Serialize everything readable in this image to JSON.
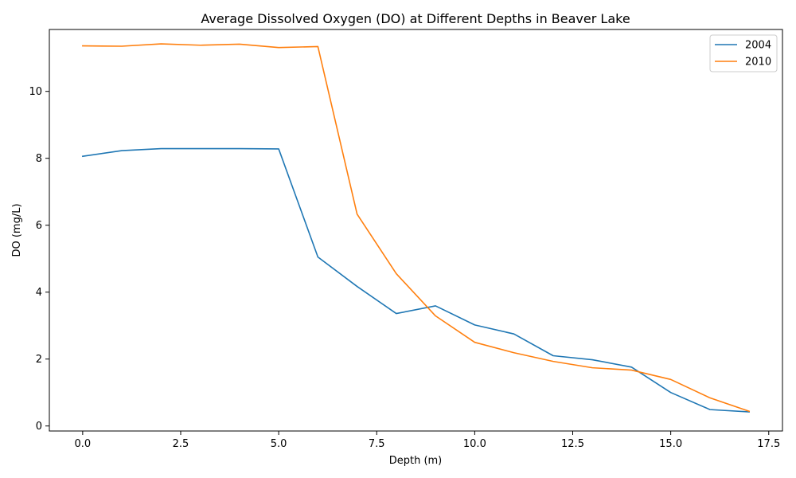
{
  "chart_data": {
    "type": "line",
    "title": "Average Dissolved Oxygen (DO) at Different Depths in Beaver Lake",
    "xlabel": "Depth (m)",
    "ylabel": "DO (mg/L)",
    "xlim": [
      -0.85,
      17.85
    ],
    "ylim": [
      -0.15,
      11.85
    ],
    "xticks": [
      0.0,
      2.5,
      5.0,
      7.5,
      10.0,
      12.5,
      15.0,
      17.5
    ],
    "xtick_labels": [
      "0.0",
      "2.5",
      "5.0",
      "7.5",
      "10.0",
      "12.5",
      "15.0",
      "17.5"
    ],
    "yticks": [
      0,
      2,
      4,
      6,
      8,
      10
    ],
    "ytick_labels": [
      "0",
      "2",
      "4",
      "6",
      "8",
      "10"
    ],
    "grid": false,
    "legend_position": "top-right",
    "x": [
      0,
      1,
      2,
      3,
      4,
      5,
      6,
      7,
      8,
      9,
      10,
      11,
      12,
      13,
      14,
      15,
      16,
      17
    ],
    "series": [
      {
        "name": "2004",
        "color": "#1f77b4",
        "values": [
          8.06,
          8.23,
          8.29,
          8.29,
          8.29,
          8.28,
          5.05,
          4.17,
          3.36,
          3.59,
          3.02,
          2.75,
          2.1,
          1.98,
          1.76,
          1.0,
          0.49,
          0.42
        ]
      },
      {
        "name": "2010",
        "color": "#ff7f0e",
        "values": [
          11.36,
          11.35,
          11.42,
          11.38,
          11.41,
          11.31,
          11.34,
          6.33,
          4.55,
          3.29,
          2.5,
          2.19,
          1.93,
          1.74,
          1.67,
          1.39,
          0.84,
          0.44
        ]
      }
    ]
  }
}
